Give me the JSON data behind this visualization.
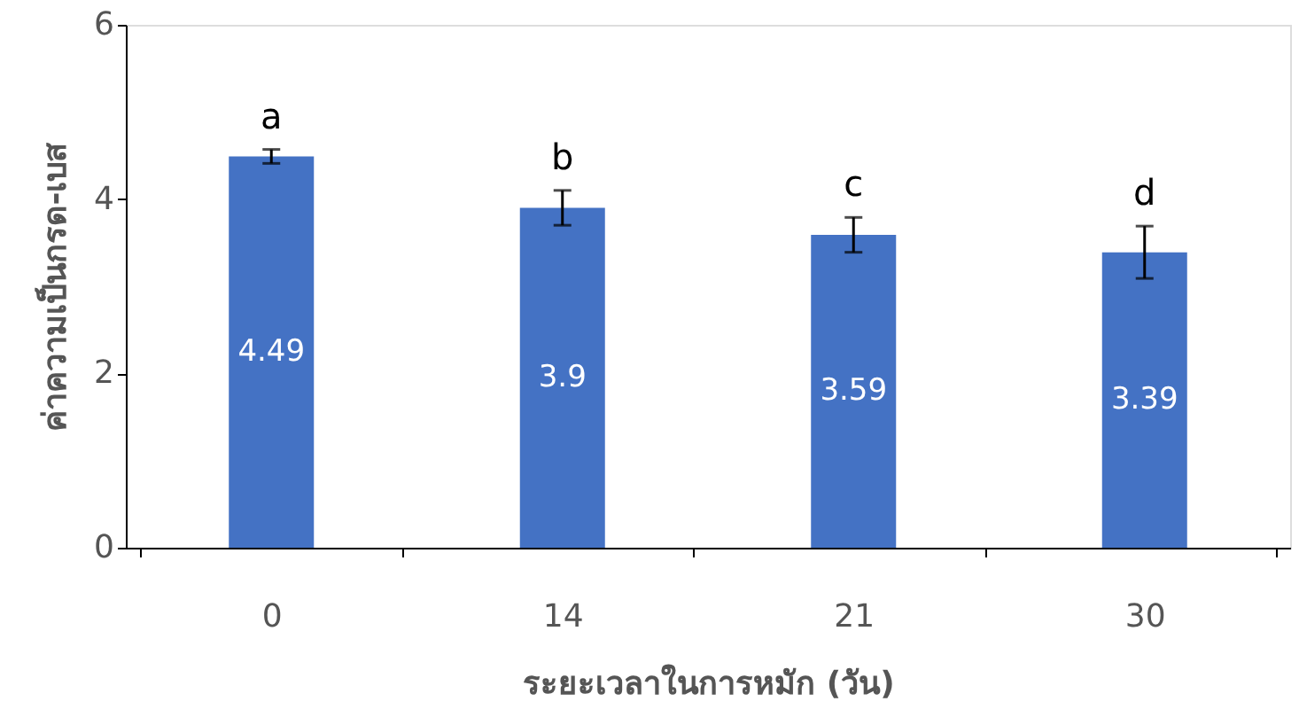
{
  "chart_data": {
    "type": "bar",
    "xlabel": "ระยะเวลาในการหมัก (วัน)",
    "ylabel": "ค่าความเป็นกรด-เบส",
    "categories": [
      "0",
      "14",
      "21",
      "30"
    ],
    "values": [
      4.49,
      3.9,
      3.59,
      3.39
    ],
    "errors": [
      0.08,
      0.2,
      0.2,
      0.3
    ],
    "color": "#4472c4",
    "ylim": [
      0,
      6
    ],
    "yticks": [
      0,
      2,
      4,
      6
    ],
    "grid": false,
    "data_labels": true,
    "annotations": [
      "a",
      "b",
      "c",
      "d"
    ]
  }
}
